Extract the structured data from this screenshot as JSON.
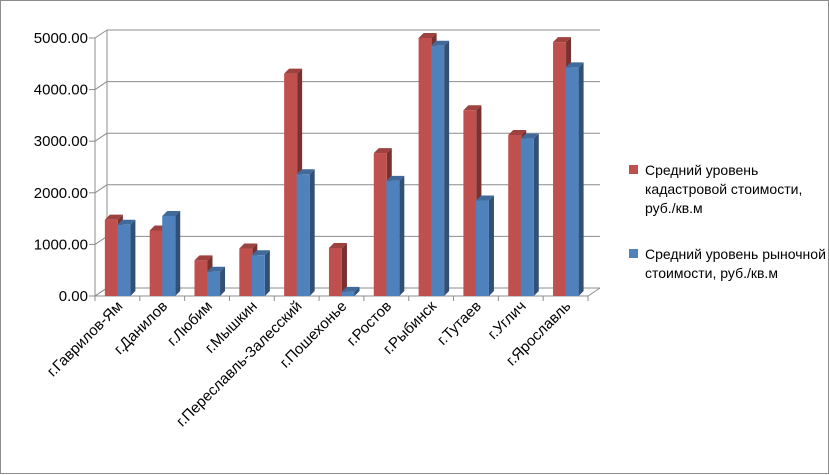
{
  "chart_data": {
    "type": "bar",
    "categories": [
      "г.Гаврилов-Ям",
      "г.Данилов",
      "г.Любим",
      "г.Мышкин",
      "г.Переславль-Залесский",
      "г.Пошехонье",
      "г.Ростов",
      "г.Рыбинск",
      "г.Тутаев",
      "г.Углич",
      "г.Ярославль"
    ],
    "series": [
      {
        "name": "Средний уровень кадастровой стоимости, руб./кв.м",
        "color": "#C0504D",
        "values": [
          1480,
          1270,
          690,
          920,
          4310,
          930,
          2770,
          5000,
          3600,
          3120,
          4920
        ]
      },
      {
        "name": "Средний уровень рыночной стоимости, руб./кв.м",
        "color": "#4F81BD",
        "values": [
          1380,
          1550,
          470,
          790,
          2360,
          80,
          2230,
          4850,
          1850,
          3050,
          4430
        ]
      }
    ],
    "ylim": [
      0,
      5000
    ],
    "yticks": [
      "0.00",
      "1000.00",
      "2000.00",
      "3000.00",
      "4000.00",
      "5000.00"
    ],
    "grid": true,
    "legend_position": "right",
    "title": "",
    "xlabel": "",
    "ylabel": ""
  }
}
